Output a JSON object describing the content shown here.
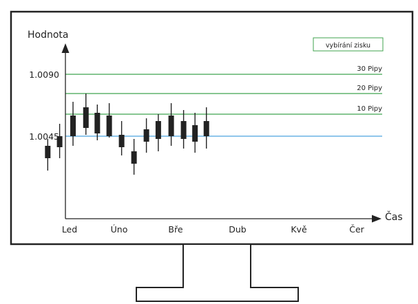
{
  "chart_data": {
    "type": "candlestick",
    "xlabel": "Čas",
    "ylabel": "Hodnota",
    "x_ticks": [
      "Led",
      "Úno",
      "Bře",
      "Dub",
      "Kvě",
      "Čer"
    ],
    "y_ticks": [
      {
        "value": 1.0045,
        "label": "1.0045"
      },
      {
        "value": 1.009,
        "label": "1.0090"
      }
    ],
    "ylim": [
      0.9985,
      1.0114
    ],
    "xlim": [
      -0.68,
      8.15
    ],
    "levels": [
      {
        "label": "30 Pipy",
        "value": 1.009,
        "color": "#3fa34d"
      },
      {
        "label": "20 Pipy",
        "value": 1.0076,
        "color": "#3fa34d"
      },
      {
        "label": "10 Pipy",
        "value": 1.0061,
        "color": "#3fa34d"
      },
      {
        "label": "",
        "value": 1.0045,
        "color": "#4aa3df"
      }
    ],
    "legend_box": {
      "label": "vybírání zisku",
      "placement": "top-right",
      "color": "#3fa34d"
    },
    "candles": [
      {
        "x": -0.44,
        "open": 1.0038,
        "high": 1.0043,
        "low": 1.002,
        "close": 1.0029
      },
      {
        "x": -0.2,
        "open": 1.0045,
        "high": 1.0054,
        "low": 1.0029,
        "close": 1.0037
      },
      {
        "x": 0.07,
        "open": 1.006,
        "high": 1.007,
        "low": 1.0038,
        "close": 1.0045
      },
      {
        "x": 0.33,
        "open": 1.0066,
        "high": 1.0076,
        "low": 1.0046,
        "close": 1.0051
      },
      {
        "x": 0.56,
        "open": 1.0062,
        "high": 1.0068,
        "low": 1.0042,
        "close": 1.0047
      },
      {
        "x": 0.8,
        "open": 1.006,
        "high": 1.0069,
        "low": 1.0044,
        "close": 1.0045
      },
      {
        "x": 1.05,
        "open": 1.0046,
        "high": 1.0056,
        "low": 1.0031,
        "close": 1.0037
      },
      {
        "x": 1.3,
        "open": 1.0034,
        "high": 1.0043,
        "low": 1.0017,
        "close": 1.0025
      },
      {
        "x": 1.55,
        "open": 1.0041,
        "high": 1.0058,
        "low": 1.0033,
        "close": 1.005
      },
      {
        "x": 1.79,
        "open": 1.0043,
        "high": 1.0061,
        "low": 1.0034,
        "close": 1.0056
      },
      {
        "x": 2.05,
        "open": 1.0045,
        "high": 1.0069,
        "low": 1.0038,
        "close": 1.006
      },
      {
        "x": 2.3,
        "open": 1.0043,
        "high": 1.0064,
        "low": 1.0036,
        "close": 1.0056
      },
      {
        "x": 2.53,
        "open": 1.0041,
        "high": 1.0062,
        "low": 1.0033,
        "close": 1.0053
      },
      {
        "x": 2.76,
        "open": 1.0045,
        "high": 1.0066,
        "low": 1.0036,
        "close": 1.0056
      }
    ],
    "candle_color": "#222222",
    "axis_color": "#222222",
    "grid": false
  }
}
